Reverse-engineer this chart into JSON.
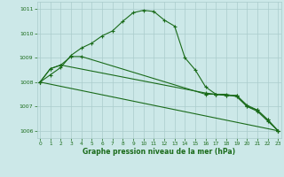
{
  "xlabel": "Graphe pression niveau de la mer (hPa)",
  "hours": [
    0,
    1,
    2,
    3,
    4,
    5,
    6,
    7,
    8,
    9,
    10,
    11,
    12,
    13,
    14,
    15,
    16,
    17,
    18,
    19,
    20,
    21,
    22,
    23
  ],
  "line1": [
    1008.0,
    1008.3,
    1008.6,
    1009.1,
    1009.4,
    1009.6,
    1009.9,
    1010.1,
    1010.5,
    1010.85,
    1010.95,
    1010.9,
    1010.55,
    1010.3,
    1009.0,
    1008.5,
    1007.8,
    1007.5,
    1007.5,
    1007.4,
    1007.0,
    1006.8,
    1006.4,
    1006.0
  ],
  "line2_x": [
    0,
    1,
    2,
    3,
    4,
    16,
    17,
    18,
    19,
    20,
    21,
    22,
    23
  ],
  "line2_y": [
    1008.0,
    1008.55,
    1008.7,
    1009.05,
    1009.05,
    1007.5,
    1007.5,
    1007.45,
    1007.45,
    1007.05,
    1006.85,
    1006.45,
    1006.0
  ],
  "line3_x": [
    0,
    23
  ],
  "line3_y": [
    1008.0,
    1006.0
  ],
  "line4_x": [
    0,
    1,
    2,
    16,
    17,
    18,
    19,
    20,
    21,
    22,
    23
  ],
  "line4_y": [
    1008.0,
    1008.55,
    1008.7,
    1007.55,
    1007.5,
    1007.45,
    1007.45,
    1007.0,
    1006.85,
    1006.45,
    1006.0
  ],
  "ylim": [
    1005.7,
    1011.3
  ],
  "xlim": [
    -0.3,
    23.3
  ],
  "yticks": [
    1006,
    1007,
    1008,
    1009,
    1010,
    1011
  ],
  "xticks": [
    0,
    1,
    2,
    3,
    4,
    5,
    6,
    7,
    8,
    9,
    10,
    11,
    12,
    13,
    14,
    15,
    16,
    17,
    18,
    19,
    20,
    21,
    22,
    23
  ],
  "line_color": "#1a6b1a",
  "bg_color": "#cce8e8",
  "grid_color": "#aacccc",
  "marker_size": 3.0,
  "line_width": 0.8
}
